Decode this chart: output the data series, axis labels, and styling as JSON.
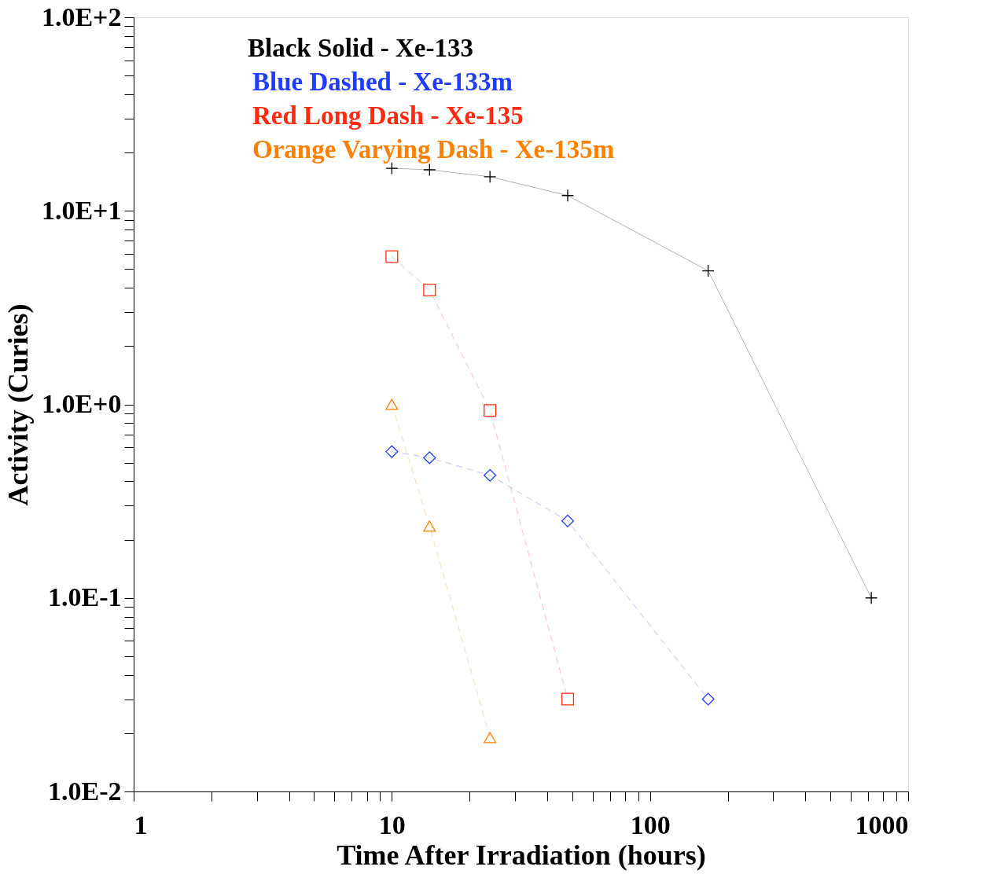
{
  "chart_data": {
    "type": "line",
    "xlabel": "Time After Irradiation (hours)",
    "ylabel": "Activity (Curies)",
    "log": "xy",
    "xlim": [
      1,
      1000
    ],
    "ylim": [
      0.01,
      100
    ],
    "xticks": [
      1,
      {
        "value": 2,
        "label": null
      },
      {
        "value": 3,
        "label": null
      },
      {
        "value": 4,
        "label": null
      },
      {
        "value": 5,
        "label": null
      },
      {
        "value": 6,
        "label": null
      },
      {
        "value": 7,
        "label": null
      },
      {
        "value": 8,
        "label": null
      },
      {
        "value": 9,
        "label": null
      },
      10,
      {
        "value": 20,
        "label": null
      },
      {
        "value": 30,
        "label": null
      },
      {
        "value": 40,
        "label": null
      },
      {
        "value": 50,
        "label": null
      },
      {
        "value": 60,
        "label": null
      },
      {
        "value": 70,
        "label": null
      },
      {
        "value": 80,
        "label": null
      },
      {
        "value": 90,
        "label": null
      },
      100,
      {
        "value": 200,
        "label": null
      },
      {
        "value": 300,
        "label": null
      },
      {
        "value": 400,
        "label": null
      },
      {
        "value": 500,
        "label": null
      },
      {
        "value": 600,
        "label": null
      },
      {
        "value": 700,
        "label": null
      },
      {
        "value": 800,
        "label": null
      },
      {
        "value": 900,
        "label": null
      },
      1000
    ],
    "yticks": [
      {
        "value": 0.01,
        "label": "1.0E-2"
      },
      {
        "value": 0.02,
        "label": null
      },
      {
        "value": 0.03,
        "label": null
      },
      {
        "value": 0.04,
        "label": null
      },
      {
        "value": 0.05,
        "label": null
      },
      {
        "value": 0.06,
        "label": null
      },
      {
        "value": 0.07,
        "label": null
      },
      {
        "value": 0.08,
        "label": null
      },
      {
        "value": 0.09,
        "label": null
      },
      {
        "value": 0.1,
        "label": "1.0E-1"
      },
      {
        "value": 0.2,
        "label": null
      },
      {
        "value": 0.3,
        "label": null
      },
      {
        "value": 0.4,
        "label": null
      },
      {
        "value": 0.5,
        "label": null
      },
      {
        "value": 0.6,
        "label": null
      },
      {
        "value": 0.7,
        "label": null
      },
      {
        "value": 0.8,
        "label": null
      },
      {
        "value": 0.9,
        "label": null
      },
      {
        "value": 1,
        "label": "1.0E+0"
      },
      {
        "value": 2,
        "label": null
      },
      {
        "value": 3,
        "label": null
      },
      {
        "value": 4,
        "label": null
      },
      {
        "value": 5,
        "label": null
      },
      {
        "value": 6,
        "label": null
      },
      {
        "value": 7,
        "label": null
      },
      {
        "value": 8,
        "label": null
      },
      {
        "value": 9,
        "label": null
      },
      {
        "value": 10,
        "label": "1.0E+1"
      },
      {
        "value": 20,
        "label": null
      },
      {
        "value": 30,
        "label": null
      },
      {
        "value": 40,
        "label": null
      },
      {
        "value": 50,
        "label": null
      },
      {
        "value": 60,
        "label": null
      },
      {
        "value": 70,
        "label": null
      },
      {
        "value": 80,
        "label": null
      },
      {
        "value": 90,
        "label": null
      },
      {
        "value": 100,
        "label": "1.0E+2"
      }
    ],
    "grid": false,
    "legend": "top left",
    "series": [
      {
        "name": "Black Solid - Xe-133",
        "color": "#000000",
        "marker": "cross",
        "line_style": "solid",
        "x": [
          10,
          14,
          24,
          48,
          168,
          720
        ],
        "values": [
          16.6,
          16.3,
          15.0,
          12.0,
          4.9,
          0.1
        ]
      },
      {
        "name": "Blue Dashed - Xe-133m",
        "color": "#1f3cff",
        "marker": "diamond",
        "line_style": "dashed",
        "x": [
          10,
          14,
          24,
          48,
          168
        ],
        "values": [
          0.57,
          0.53,
          0.43,
          0.25,
          0.03
        ]
      },
      {
        "name": "Red Long Dash - Xe-135",
        "color": "#ff2a10",
        "marker": "square",
        "line_style": "dashed",
        "x": [
          10,
          14,
          24,
          48
        ],
        "values": [
          5.8,
          3.9,
          0.93,
          0.03
        ]
      },
      {
        "name": "Orange Varying Dash - Xe-135m",
        "color": "#ff8000",
        "marker": "triangle",
        "line_style": "dashed",
        "x": [
          10,
          14,
          24
        ],
        "values": [
          1.0,
          0.235,
          0.019
        ]
      }
    ]
  }
}
